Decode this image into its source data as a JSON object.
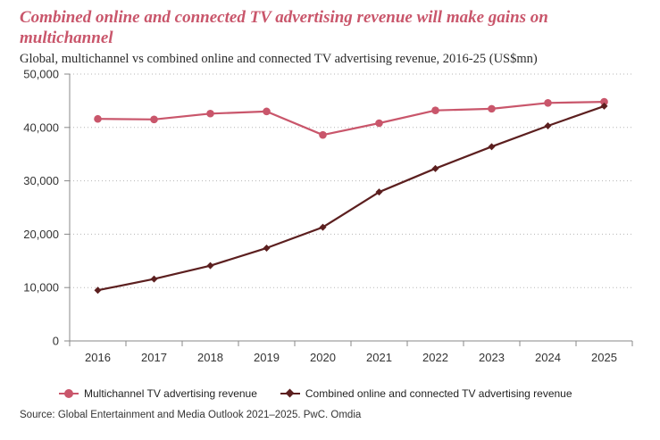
{
  "header": {
    "title": "Combined online and connected TV advertising revenue will make gains on multichannel",
    "subtitle": "Global, multichannel vs combined online and connected TV advertising revenue, 2016-25 (US$mn)"
  },
  "chart_data": {
    "type": "line",
    "title": "Combined online and connected TV advertising revenue will make gains on multichannel",
    "subtitle": "Global, multichannel vs combined online and connected TV advertising revenue, 2016-25 (US$mn)",
    "xlabel": "",
    "ylabel": "",
    "categories": [
      "2016",
      "2017",
      "2018",
      "2019",
      "2020",
      "2021",
      "2022",
      "2023",
      "2024",
      "2025"
    ],
    "ylim": [
      0,
      50000
    ],
    "yticks": [
      0,
      10000,
      20000,
      30000,
      40000,
      50000
    ],
    "ytick_labels": [
      "0",
      "10,000",
      "20,000",
      "30,000",
      "40,000",
      "50,000"
    ],
    "grid": "horizontal dotted",
    "legend_position": "bottom",
    "series": [
      {
        "name": "Multichannel TV advertising revenue",
        "color": "#c9566b",
        "marker": "circle",
        "values": [
          41600,
          41500,
          42600,
          43000,
          38600,
          40800,
          43200,
          43500,
          44600,
          44800
        ]
      },
      {
        "name": "Combined online and connected TV advertising revenue",
        "color": "#5c1f1f",
        "marker": "diamond",
        "values": [
          9500,
          11600,
          14100,
          17400,
          21300,
          27900,
          32300,
          36400,
          40300,
          44000
        ]
      }
    ]
  },
  "source": "Source: Global Entertainment and Media Outlook 2021–2025. PwC. Omdia"
}
